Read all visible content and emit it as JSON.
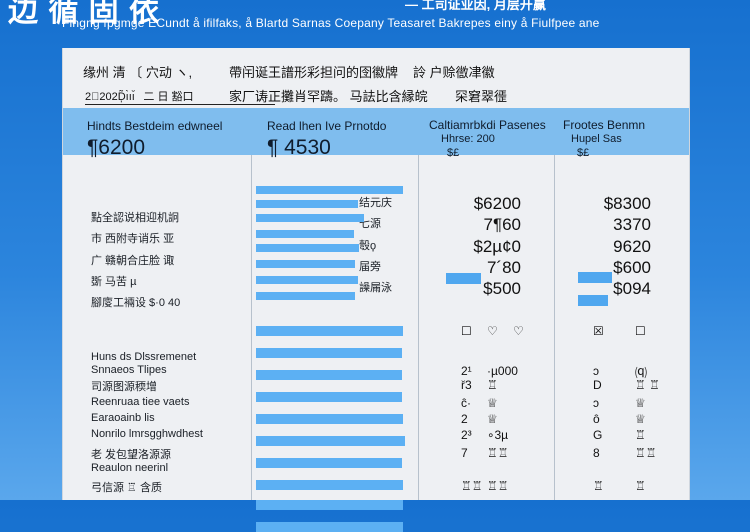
{
  "banner": {
    "title": "边 循 固 依 ",
    "subtitle": "— 工司证业因, 月层开赢",
    "caption": "Fingng fpgmgé ÉCundt   å ifilfaks, å Blartd Sarnas Coepany   Teasaret Bakrepes einy å Fiulfpee ane"
  },
  "meta": {
    "left_top": "缘州 清   〔 穴动 ヽ,",
    "left_bottom": "2⃠202Ḑ̃ı̀ıı̆   二 日 豁口",
    "mid_top": "帶闬诞王譜形彩担问的囹徽牌",
    "mid_bottom": "家厂诪正攤肖罕躊。  马詓比含縁皖",
    "right_top": "詅 户赊徾冿徽",
    "right_bottom": "罙窘翠徰"
  },
  "columns": [
    {
      "header": "Hindts Bestdeim edwneel",
      "value": "¶6200"
    },
    {
      "header": "Read lhen Ive Prnotdo",
      "value": "¶ 4530"
    },
    {
      "header": "Caltiamrbkdi Pasenes",
      "sub1": "Hhrse: 200",
      "sub2": "$£"
    },
    {
      "header": "Frootes Benmn",
      "sub1": "Hupel Sas",
      "sub2": "$£"
    }
  ],
  "upper_rows": [
    {
      "label": "點全認说相迎机詗",
      "bar_value": "结元庆",
      "amount1": "$6200",
      "amount2": "$8300"
    },
    {
      "label": "市 西附寺诮乐 亚",
      "bar_value": "七源",
      "amount1": "7¶60",
      "amount2": "3370"
    },
    {
      "label": "广 赣朝合庄脸 诹",
      "bar_value": "彀ϙ",
      "amount1": "$2µ¢0",
      "amount2": "9620"
    },
    {
      "label": "斲 马苦 µ",
      "bar_value": "届旁",
      "amount1": "7´80",
      "amount2": "$600"
    },
    {
      "label": "腳廀工裲设  $·0 40",
      "bar_value": "譟屚泳",
      "amount1": "$500",
      "amount2": "$094"
    }
  ],
  "lower_rows": [
    {
      "label": "",
      "left": "☐",
      "d1": "♡",
      "d2": "♡",
      "e1": "☒",
      "e2": "☐"
    },
    {
      "label": "Huns ds Dlssremenet",
      "left": "",
      "d1": "",
      "d2": "",
      "e1": "",
      "e2": ""
    },
    {
      "label": "Snnaeos Tlipes",
      "left": "2¹",
      "d1": "·µ000",
      "d2": "",
      "e1": "ɔ",
      "e2": "⒬"
    },
    {
      "label": "司源图源稬增",
      "left": "ř3",
      "d1": "♖",
      "d2": "",
      "e1": "D",
      "e2": "♖ ♖"
    },
    {
      "label": "Reenruaa tiee vaets",
      "left": "ĉ·",
      "d1": "♕",
      "d2": "",
      "e1": "ɔ",
      "e2": "♕"
    },
    {
      "label": "Earaoainb lis",
      "left": "2",
      "d1": "♕",
      "d2": "",
      "e1": "ô",
      "e2": "♕"
    },
    {
      "label": "Nonrilo lmrsgghwdhest",
      "left": "2³",
      "d1": "∘3µ",
      "d2": "",
      "e1": "G",
      "e2": "♖"
    },
    {
      "label": "老 发包望洛源源",
      "left": "7",
      "d1": "♖♖",
      "d2": "",
      "e1": "8",
      "e2": "♖♖"
    },
    {
      "label": "Reaulon neerinl",
      "left": "",
      "d1": "",
      "d2": "",
      "e1": "",
      "e2": ""
    },
    {
      "label": "弓信源 ♖ 含质",
      "left": "♖♖",
      "d1": "♖♖",
      "d2": "",
      "e1": "♖",
      "e2": "♖"
    }
  ],
  "bars_upper": [
    0.98,
    0.68,
    0.72,
    0.65,
    0.69,
    0.66,
    0.68,
    0.66
  ],
  "bars_lower": [
    0.98,
    0.97,
    0.97,
    0.97,
    0.98,
    0.99,
    0.97,
    0.98,
    0.98,
    0.98
  ],
  "small_bars": [
    {
      "col": 1,
      "fraction": 0.44
    },
    {
      "col": 2,
      "fraction": 0.42
    },
    {
      "col": 2,
      "fraction": 0.38
    }
  ],
  "colors": {
    "accent": "#5cb0f3",
    "header_band": "#7fbdee",
    "background": "#1670cf"
  }
}
